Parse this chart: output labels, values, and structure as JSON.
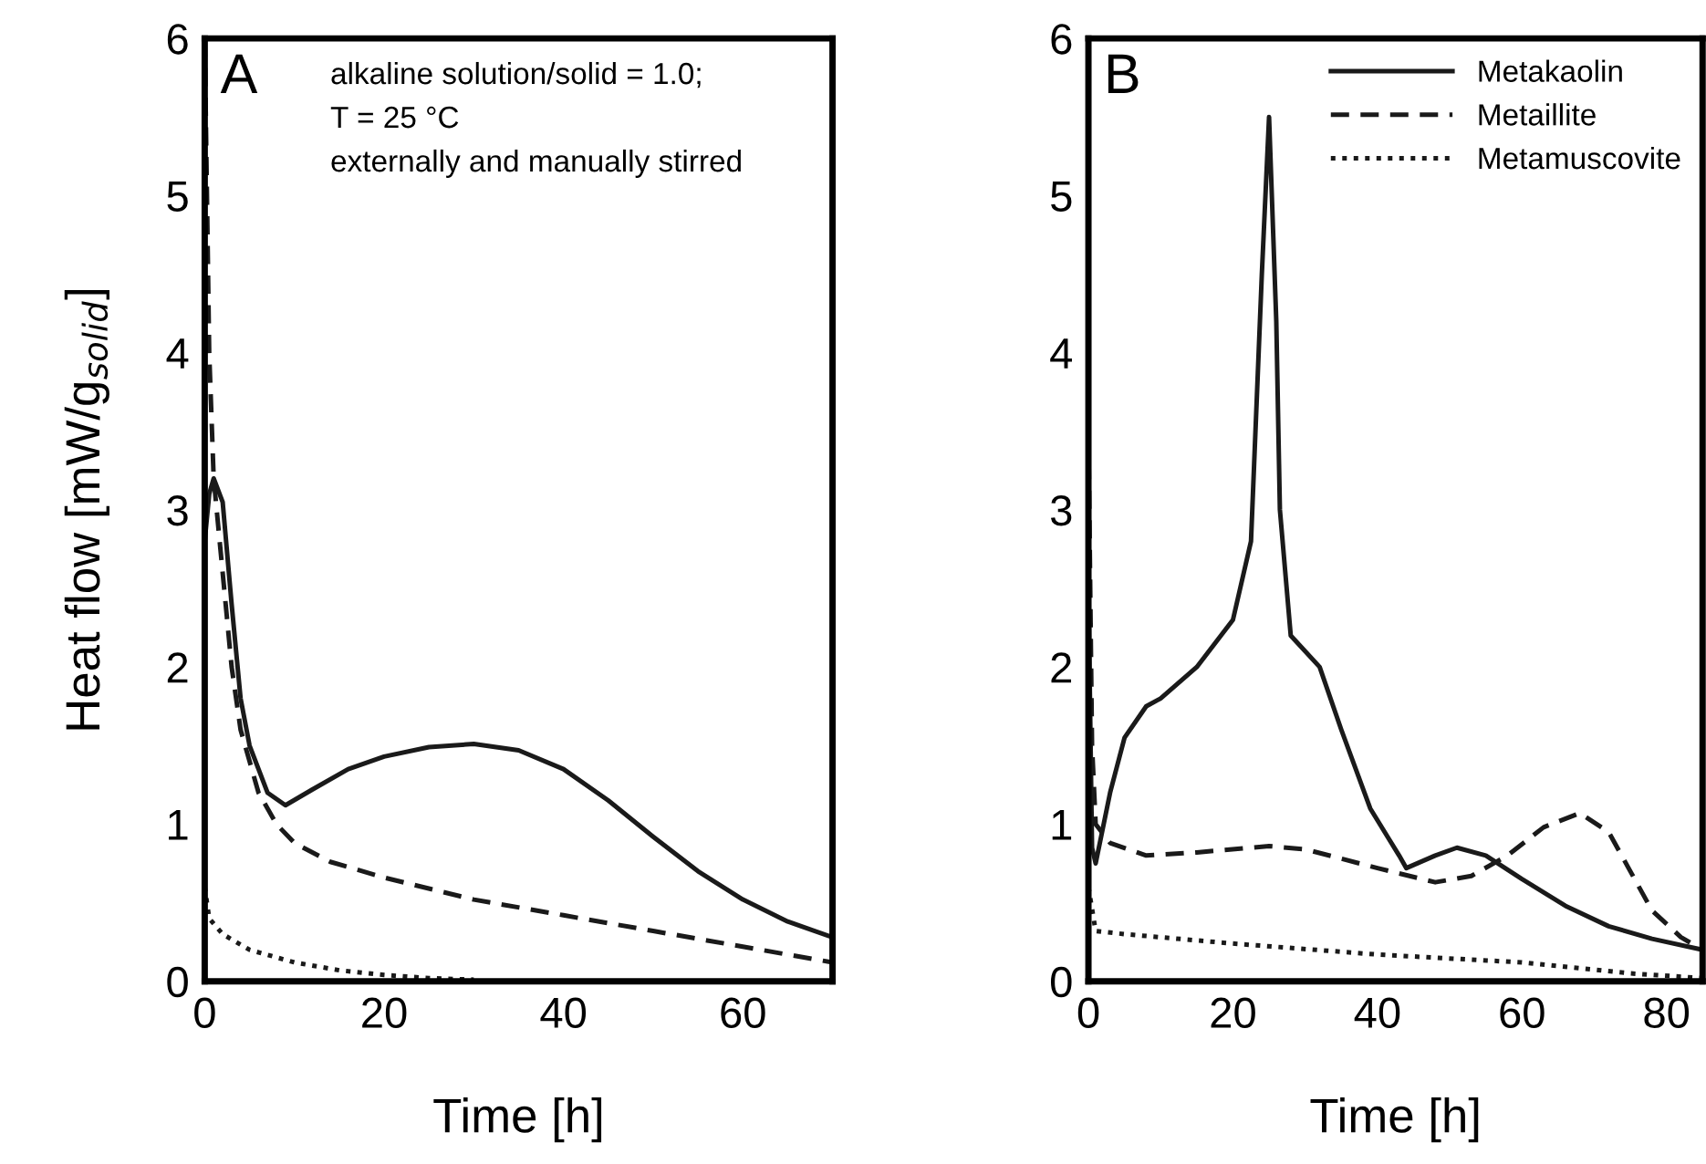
{
  "chart_data": [
    {
      "type": "line",
      "xlabel": "Time [h]",
      "ylabel": "Heat flow [mW/g$_{solid}$]",
      "xlim": [
        0,
        70
      ],
      "ylim": [
        0,
        6
      ],
      "xticks": [
        0,
        20,
        40,
        60
      ],
      "yticks": [
        0,
        1,
        2,
        3,
        4,
        5,
        6
      ],
      "grid": false,
      "legend": false,
      "annotations": [
        "A",
        "alkaline solution/solid = 1.0;\nT = 25 °C\nexternally and manually stirred"
      ],
      "series": [
        {
          "color": "#1a1a1a",
          "line_style": "solid",
          "x": [
            0,
            0.5,
            1,
            2,
            3,
            4,
            5,
            7,
            9,
            12,
            16,
            20,
            25,
            30,
            35,
            40,
            45,
            50,
            55,
            60,
            65,
            70
          ],
          "values": [
            2.8,
            3.1,
            3.2,
            3.05,
            2.4,
            1.8,
            1.5,
            1.2,
            1.12,
            1.22,
            1.35,
            1.43,
            1.49,
            1.51,
            1.47,
            1.35,
            1.15,
            0.92,
            0.7,
            0.52,
            0.38,
            0.28
          ]
        },
        {
          "color": "#1a1a1a",
          "line_style": "dashed",
          "x": [
            0,
            0.5,
            1,
            2,
            3,
            4,
            6,
            8,
            10,
            14,
            20,
            30,
            40,
            50,
            60,
            70
          ],
          "values": [
            6,
            4,
            3.2,
            2.6,
            2.0,
            1.6,
            1.2,
            1.0,
            0.88,
            0.76,
            0.66,
            0.52,
            0.42,
            0.32,
            0.22,
            0.12
          ]
        },
        {
          "color": "#1a1a1a",
          "line_style": "dotted",
          "x": [
            0,
            0.5,
            2,
            5,
            10,
            15,
            20,
            25,
            30
          ],
          "values": [
            0.6,
            0.4,
            0.3,
            0.2,
            0.12,
            0.07,
            0.04,
            0.02,
            0.01
          ]
        }
      ]
    },
    {
      "type": "line",
      "xlabel": "Time [h]",
      "xlim": [
        0,
        85
      ],
      "ylim": [
        0,
        6
      ],
      "xticks": [
        0,
        20,
        40,
        60,
        80
      ],
      "yticks": [
        0,
        1,
        2,
        3,
        4,
        5,
        6
      ],
      "grid": false,
      "legend": "top right",
      "annotations": [
        "B"
      ],
      "series": [
        {
          "name": "Metakaolin",
          "color": "#1a1a1a",
          "line_style": "solid",
          "x": [
            0,
            0.5,
            1,
            3,
            5,
            8,
            10,
            15,
            20,
            22.5,
            24,
            25,
            26,
            26.5,
            28,
            32,
            35,
            39,
            43,
            44,
            48,
            51,
            55,
            60,
            66,
            72,
            78,
            85
          ],
          "values": [
            2.5,
            0.85,
            0.75,
            1.2,
            1.55,
            1.75,
            1.8,
            2.0,
            2.3,
            2.8,
            4.5,
            5.5,
            4.2,
            3.0,
            2.2,
            2.0,
            1.6,
            1.1,
            0.8,
            0.72,
            0.8,
            0.85,
            0.8,
            0.65,
            0.48,
            0.35,
            0.27,
            0.2
          ]
        },
        {
          "name": "Metaillite",
          "color": "#1a1a1a",
          "line_style": "dashed",
          "x": [
            0,
            0.5,
            1,
            3,
            8,
            15,
            25,
            30,
            40,
            48,
            53,
            58,
            63,
            68,
            72,
            75,
            78,
            82,
            85
          ],
          "values": [
            3.5,
            1.5,
            1.0,
            0.88,
            0.8,
            0.82,
            0.86,
            0.84,
            0.72,
            0.63,
            0.67,
            0.8,
            0.98,
            1.07,
            0.95,
            0.7,
            0.45,
            0.28,
            0.2
          ]
        },
        {
          "name": "Metamuscovite",
          "color": "#1a1a1a",
          "line_style": "dotted",
          "x": [
            0,
            1,
            5,
            20,
            40,
            60,
            75,
            85
          ],
          "values": [
            0.6,
            0.32,
            0.3,
            0.24,
            0.17,
            0.12,
            0.05,
            0.02
          ]
        }
      ]
    }
  ]
}
